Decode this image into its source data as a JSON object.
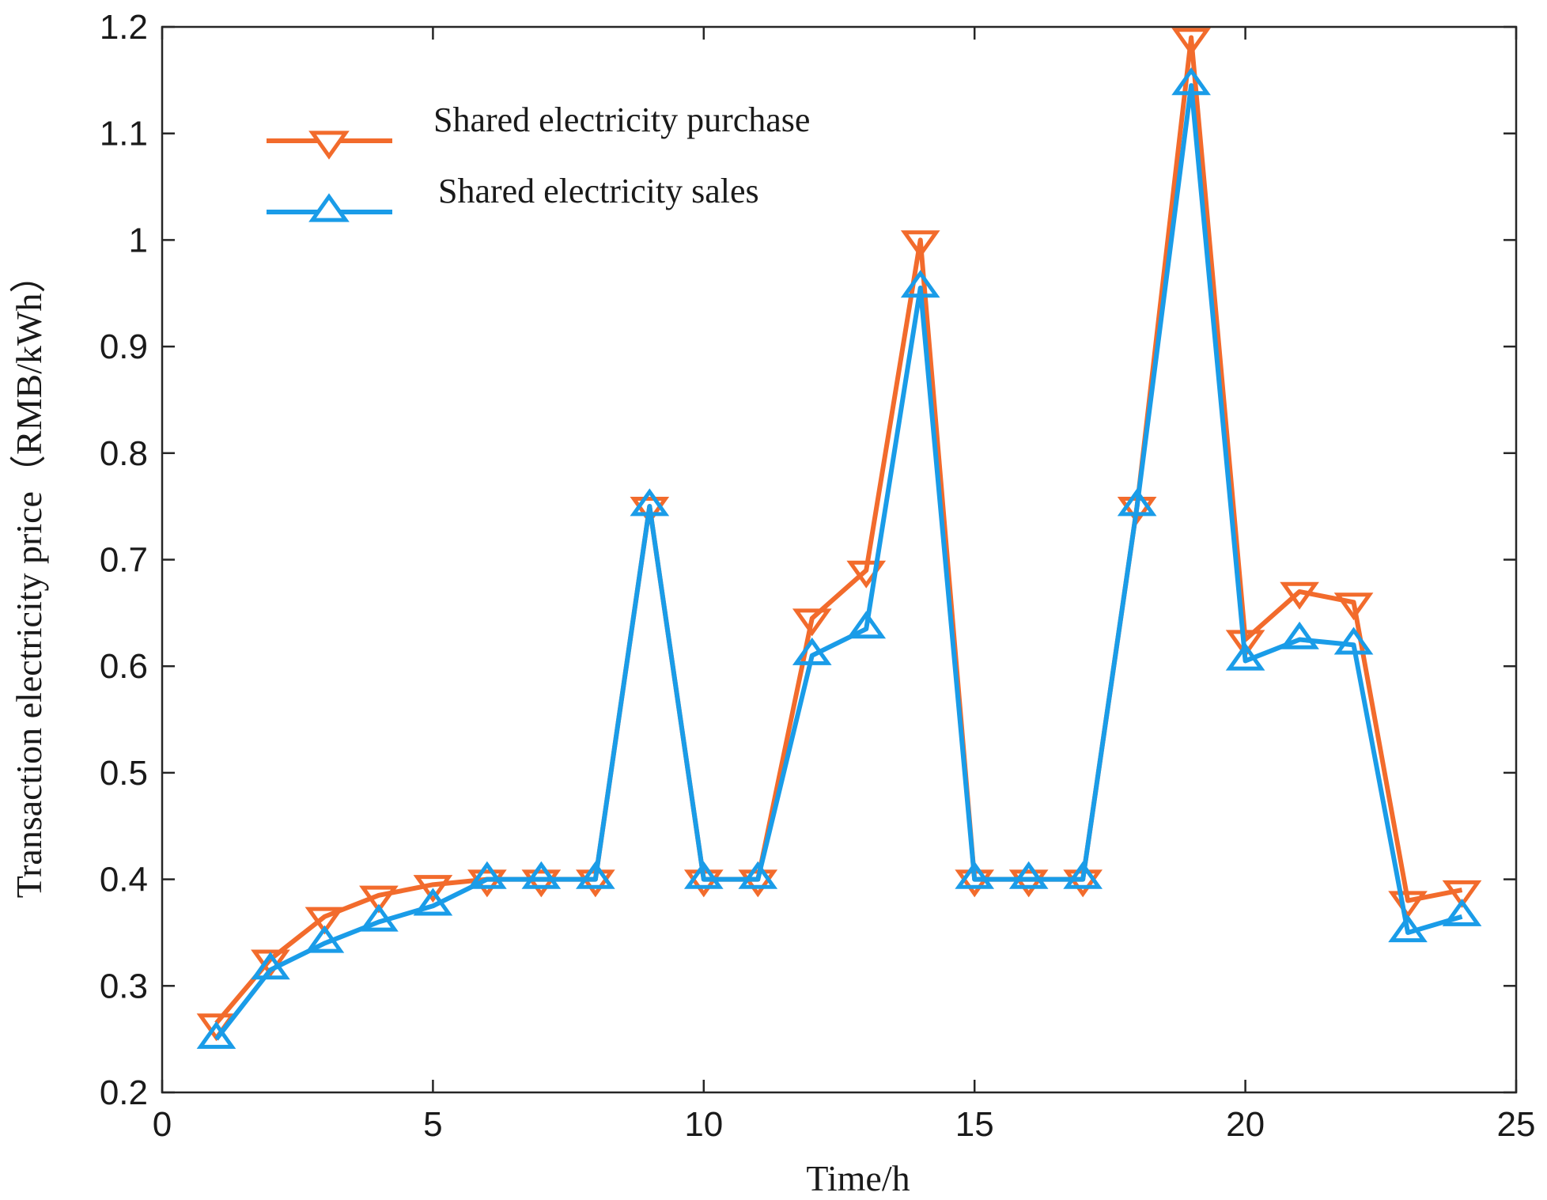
{
  "chart_data": {
    "type": "line",
    "title": "",
    "xlabel": "Time/h",
    "ylabel": "Transaction electricity price（RMB/kWh）",
    "xlim": [
      0,
      25
    ],
    "ylim": [
      0.2,
      1.2
    ],
    "xticks": [
      0,
      5,
      10,
      15,
      20,
      25
    ],
    "yticks": [
      0.2,
      0.3,
      0.4,
      0.5,
      0.6,
      0.7,
      0.8,
      0.9,
      1,
      1.1,
      1.2
    ],
    "xtick_labels": [
      "0",
      "5",
      "10",
      "15",
      "20",
      "25"
    ],
    "ytick_labels": [
      "0.2",
      "0.3",
      "0.4",
      "0.5",
      "0.6",
      "0.7",
      "0.8",
      "0.9",
      "1",
      "1.1",
      "1.2"
    ],
    "grid": false,
    "legend_position": "top-left",
    "x": [
      1,
      2,
      3,
      4,
      5,
      6,
      7,
      8,
      9,
      10,
      11,
      12,
      13,
      14,
      15,
      16,
      17,
      18,
      19,
      20,
      21,
      22,
      23,
      24
    ],
    "series": [
      {
        "name": "Shared electricity purchase",
        "color": "#f26b2c",
        "marker": "triangle-down",
        "values": [
          0.265,
          0.325,
          0.365,
          0.385,
          0.395,
          0.4,
          0.4,
          0.4,
          0.75,
          0.4,
          0.4,
          0.645,
          0.69,
          1.0,
          0.4,
          0.4,
          0.4,
          0.75,
          1.19,
          0.625,
          0.67,
          0.66,
          0.38,
          0.39
        ]
      },
      {
        "name": "Shared electricity sales",
        "color": "#1a9ce8",
        "marker": "triangle-up",
        "values": [
          0.25,
          0.315,
          0.34,
          0.36,
          0.375,
          0.4,
          0.4,
          0.4,
          0.75,
          0.4,
          0.4,
          0.61,
          0.635,
          0.955,
          0.4,
          0.4,
          0.4,
          0.75,
          1.145,
          0.605,
          0.625,
          0.62,
          0.35,
          0.365
        ]
      }
    ]
  }
}
